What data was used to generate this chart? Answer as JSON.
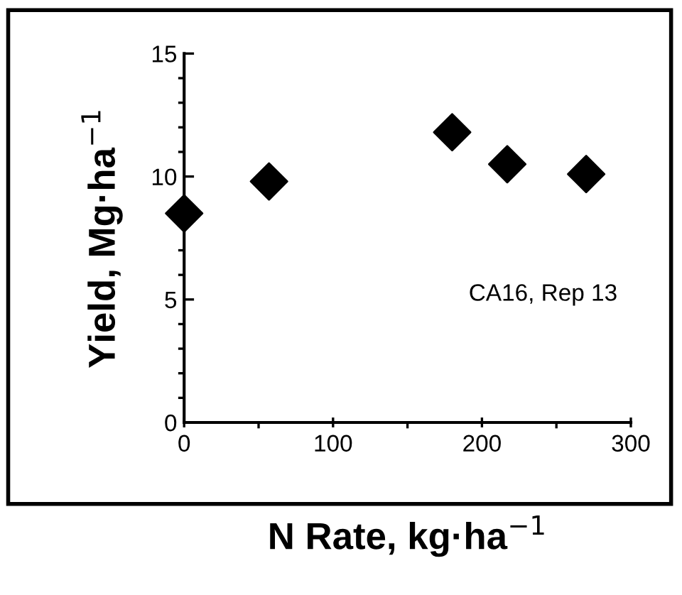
{
  "chart_data": {
    "type": "scatter",
    "xlabel": "N Rate, kg·ha$^{−1}$",
    "ylabel": "Yield, Mg·ha$^{−1}$",
    "annotations": [
      "CA16, Rep 13"
    ],
    "x": [
      0,
      57,
      180,
      217,
      270
    ],
    "series": [
      {
        "color": "#000000",
        "values": [
          8.5,
          9.8,
          11.8,
          10.5,
          10.1
        ]
      }
    ],
    "marker": "diamond",
    "xlim": [
      0,
      300
    ],
    "ylim": [
      0,
      15
    ],
    "xticks": [
      0,
      100,
      200,
      300
    ],
    "yticks": [
      0,
      5,
      10,
      15
    ],
    "grid": false
  }
}
